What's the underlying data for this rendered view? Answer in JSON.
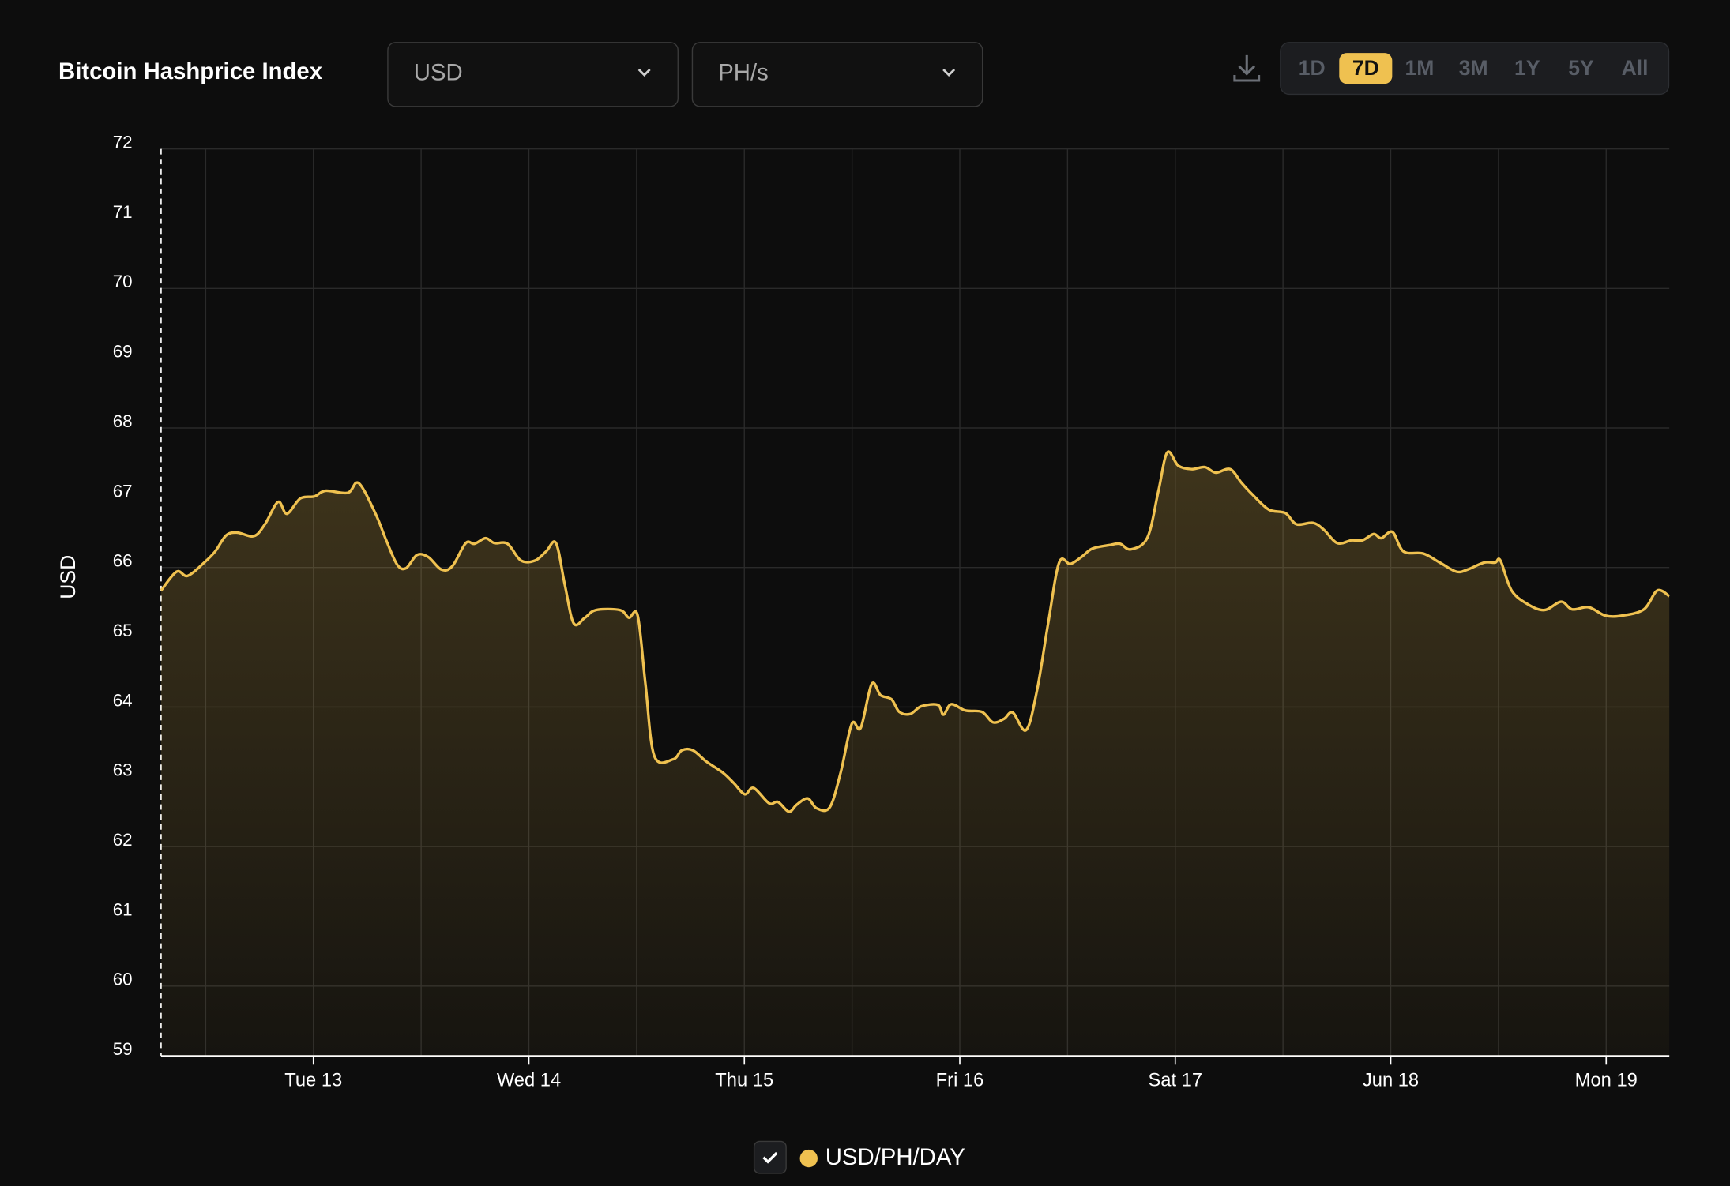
{
  "header": {
    "title": "Bitcoin Hashprice Index"
  },
  "controls": {
    "currency": "USD",
    "unit": "PH/s",
    "ranges": [
      {
        "label": "1D"
      },
      {
        "label": "7D",
        "active": true
      },
      {
        "label": "1M"
      },
      {
        "label": "3M"
      },
      {
        "label": "1Y"
      },
      {
        "label": "5Y"
      },
      {
        "label": "All"
      }
    ]
  },
  "chart_data": {
    "type": "area",
    "ylabel": "USD",
    "x": [
      12.293,
      12.365,
      12.416,
      12.493,
      12.544,
      12.595,
      12.647,
      12.724,
      12.775,
      12.836,
      12.877,
      12.939,
      13.005,
      13.056,
      13.159,
      13.21,
      13.287,
      13.338,
      13.389,
      13.43,
      13.481,
      13.533,
      13.594,
      13.645,
      13.707,
      13.748,
      13.799,
      13.84,
      13.901,
      13.963,
      14.029,
      14.08,
      14.126,
      14.167,
      14.208,
      14.26,
      14.311,
      14.423,
      14.464,
      14.505,
      14.541,
      14.582,
      14.669,
      14.71,
      14.761,
      14.823,
      14.9,
      14.951,
      15.002,
      15.043,
      15.115,
      15.156,
      15.207,
      15.243,
      15.294,
      15.335,
      15.396,
      15.447,
      15.499,
      15.54,
      15.591,
      15.632,
      15.683,
      15.719,
      15.77,
      15.821,
      15.898,
      15.924,
      15.96,
      16.026,
      16.103,
      16.154,
      16.205,
      16.246,
      16.308,
      16.359,
      16.41,
      16.461,
      16.513,
      16.564,
      16.615,
      16.692,
      16.743,
      16.794,
      16.871,
      16.922,
      16.963,
      17.014,
      17.076,
      17.137,
      17.188,
      17.255,
      17.306,
      17.357,
      17.434,
      17.511,
      17.562,
      17.639,
      17.69,
      17.752,
      17.818,
      17.869,
      17.921,
      17.956,
      18.008,
      18.059,
      18.151,
      18.228,
      18.305,
      18.356,
      18.433,
      18.484,
      18.509,
      18.561,
      18.638,
      18.714,
      18.791,
      18.842,
      18.919,
      18.996,
      19.073,
      19.175,
      19.237,
      19.293
    ],
    "series": [
      {
        "name": "USD/PH/DAY",
        "color": "#efc150",
        "values": [
          65.67,
          65.94,
          65.88,
          66.07,
          66.23,
          66.46,
          66.5,
          66.45,
          66.62,
          66.94,
          66.77,
          66.99,
          67.02,
          67.1,
          67.07,
          67.21,
          66.78,
          66.39,
          66.04,
          65.99,
          66.18,
          66.15,
          65.97,
          66.02,
          66.35,
          66.34,
          66.42,
          66.35,
          66.34,
          66.1,
          66.1,
          66.23,
          66.35,
          65.75,
          65.2,
          65.28,
          65.39,
          65.39,
          65.28,
          65.31,
          64.33,
          63.3,
          63.25,
          63.38,
          63.38,
          63.22,
          63.06,
          62.91,
          62.75,
          62.84,
          62.62,
          62.64,
          62.5,
          62.6,
          62.69,
          62.55,
          62.56,
          63.06,
          63.76,
          63.7,
          64.33,
          64.17,
          64.11,
          63.93,
          63.9,
          64.01,
          64.03,
          63.89,
          64.04,
          63.95,
          63.93,
          63.78,
          63.83,
          63.92,
          63.67,
          64.25,
          65.2,
          66.07,
          66.05,
          66.15,
          66.27,
          66.32,
          66.34,
          66.26,
          66.43,
          67.1,
          67.65,
          67.46,
          67.41,
          67.44,
          67.36,
          67.41,
          67.22,
          67.05,
          66.83,
          66.78,
          66.62,
          66.64,
          66.54,
          66.35,
          66.39,
          66.39,
          66.48,
          66.42,
          66.51,
          66.23,
          66.2,
          66.07,
          65.94,
          65.97,
          66.07,
          66.07,
          66.1,
          65.67,
          65.47,
          65.39,
          65.51,
          65.4,
          65.43,
          65.31,
          65.31,
          65.4,
          65.67,
          65.59
        ]
      }
    ],
    "xlim": [
      12.293,
      19.293
    ],
    "xticks": [
      {
        "value": 13,
        "label": "Tue 13"
      },
      {
        "value": 14,
        "label": "Wed 14"
      },
      {
        "value": 15,
        "label": "Thu 15"
      },
      {
        "value": 16,
        "label": "Fri 16"
      },
      {
        "value": 17,
        "label": "Sat 17"
      },
      {
        "value": 18,
        "label": "Jun 18"
      },
      {
        "value": 19,
        "label": "Mon 19"
      }
    ],
    "ylim": [
      59,
      72
    ],
    "yticks": [
      59,
      60,
      61,
      62,
      63,
      64,
      65,
      66,
      67,
      68,
      69,
      70,
      71,
      72
    ],
    "grid": true,
    "legend": "bottom"
  }
}
